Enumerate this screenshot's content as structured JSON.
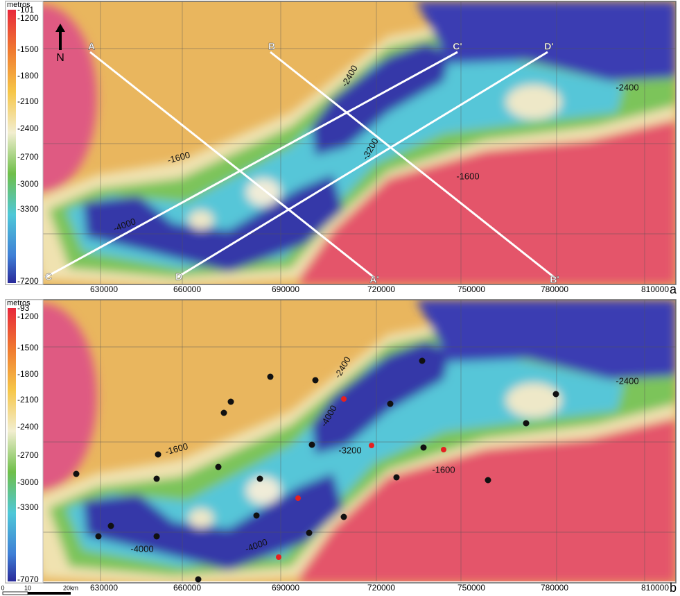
{
  "panels": [
    {
      "legend_title": "metros",
      "legend_labels": [
        "-101",
        "-1200",
        "-1500",
        "-1800",
        "-2100",
        "-2400",
        "-2700",
        "-3000",
        "-3300",
        "-7200"
      ],
      "x_labels": [
        "630000",
        "660000",
        "690000",
        "720000",
        "750000",
        "780000",
        "810000"
      ],
      "north": "N",
      "profile_labels": [
        "A",
        "A'",
        "B",
        "B'",
        "C",
        "C'",
        "D",
        "D'"
      ],
      "contour_labels": [
        "-2400",
        "-2400",
        "-3200",
        "-1600",
        "-1600",
        "-4000"
      ],
      "letter": "a"
    },
    {
      "legend_title": "metros",
      "legend_labels": [
        "-93",
        "-1200",
        "-1500",
        "-1800",
        "-2100",
        "-2400",
        "-2700",
        "-3000",
        "-3300",
        "-7070"
      ],
      "x_labels": [
        "630000",
        "660000",
        "690000",
        "720000",
        "750000",
        "780000",
        "810000"
      ],
      "contour_labels": [
        "-2400",
        "-2400",
        "-4000",
        "-3200",
        "-1600",
        "-1600",
        "-4000",
        "-4000"
      ],
      "letter": "b"
    }
  ],
  "scale_bar": [
    "0",
    "10",
    "20km"
  ]
}
